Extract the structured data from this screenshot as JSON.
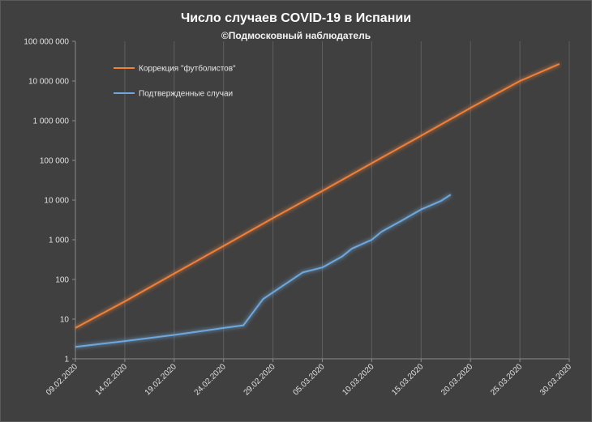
{
  "chart_data": {
    "type": "line",
    "title": "Число случаев COVID-19 в Испании",
    "subtitle": "©Подмосковный наблюдатель",
    "y_scale": "log",
    "ylim": [
      1,
      100000000
    ],
    "y_ticks": [
      {
        "value": 1,
        "label": "1"
      },
      {
        "value": 10,
        "label": "10"
      },
      {
        "value": 100,
        "label": "100"
      },
      {
        "value": 1000,
        "label": "1 000"
      },
      {
        "value": 10000,
        "label": "10 000"
      },
      {
        "value": 100000,
        "label": "100 000"
      },
      {
        "value": 1000000,
        "label": "1 000 000"
      },
      {
        "value": 10000000,
        "label": "10 000 000"
      },
      {
        "value": 100000000,
        "label": "100 000 000"
      }
    ],
    "xlim": [
      "2020-02-09",
      "2020-03-30"
    ],
    "x_ticks": [
      {
        "date": "2020-02-09",
        "label": "09.02.2020"
      },
      {
        "date": "2020-02-14",
        "label": "14.02.2020"
      },
      {
        "date": "2020-02-19",
        "label": "19.02.2020"
      },
      {
        "date": "2020-02-24",
        "label": "24.02.2020"
      },
      {
        "date": "2020-02-29",
        "label": "29.02.2020"
      },
      {
        "date": "2020-03-05",
        "label": "05.03.2020"
      },
      {
        "date": "2020-03-10",
        "label": "10.03.2020"
      },
      {
        "date": "2020-03-15",
        "label": "15.03.2020"
      },
      {
        "date": "2020-03-20",
        "label": "20.03.2020"
      },
      {
        "date": "2020-03-25",
        "label": "25.03.2020"
      },
      {
        "date": "2020-03-30",
        "label": "30.03.2020"
      }
    ],
    "grid": "vertical",
    "legend_position": "top-left",
    "series": [
      {
        "name": "Коррекция \"футболистов\"",
        "color": "#f0803a",
        "points": [
          {
            "x": "2020-02-09",
            "y": 6
          },
          {
            "x": "2020-02-14",
            "y": 28
          },
          {
            "x": "2020-02-19",
            "y": 140
          },
          {
            "x": "2020-02-24",
            "y": 700
          },
          {
            "x": "2020-02-29",
            "y": 3500
          },
          {
            "x": "2020-03-05",
            "y": 17000
          },
          {
            "x": "2020-03-10",
            "y": 85000
          },
          {
            "x": "2020-03-15",
            "y": 420000
          },
          {
            "x": "2020-03-20",
            "y": 2100000
          },
          {
            "x": "2020-03-25",
            "y": 10000000
          },
          {
            "x": "2020-03-29",
            "y": 27000000
          }
        ]
      },
      {
        "name": "Подтвержденные случаи",
        "color": "#6fa8dc",
        "points": [
          {
            "x": "2020-02-09",
            "y": 2
          },
          {
            "x": "2020-02-14",
            "y": 2.8
          },
          {
            "x": "2020-02-19",
            "y": 4
          },
          {
            "x": "2020-02-24",
            "y": 6
          },
          {
            "x": "2020-02-26",
            "y": 7
          },
          {
            "x": "2020-02-28",
            "y": 32
          },
          {
            "x": "2020-03-03",
            "y": 150
          },
          {
            "x": "2020-03-05",
            "y": 200
          },
          {
            "x": "2020-03-07",
            "y": 380
          },
          {
            "x": "2020-03-08",
            "y": 600
          },
          {
            "x": "2020-03-10",
            "y": 1000
          },
          {
            "x": "2020-03-11",
            "y": 1600
          },
          {
            "x": "2020-03-12",
            "y": 2200
          },
          {
            "x": "2020-03-13",
            "y": 3000
          },
          {
            "x": "2020-03-15",
            "y": 5800
          },
          {
            "x": "2020-03-17",
            "y": 9500
          },
          {
            "x": "2020-03-18",
            "y": 13700
          }
        ]
      }
    ]
  }
}
